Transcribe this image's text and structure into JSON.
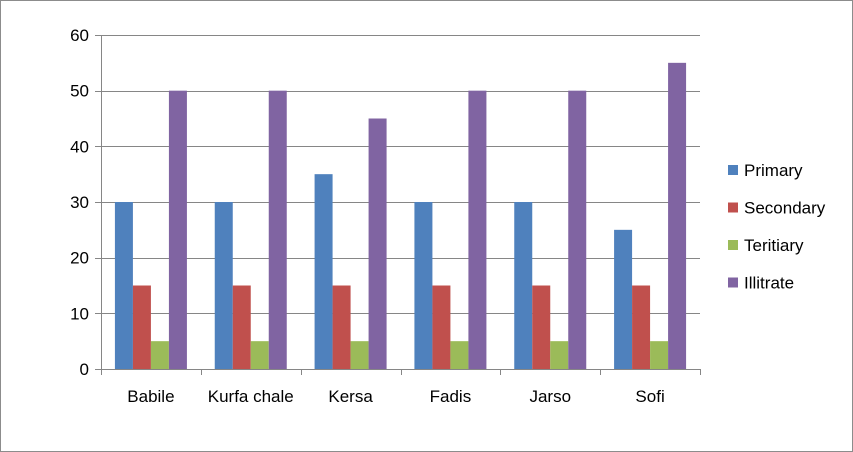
{
  "chart_data": {
    "type": "bar",
    "categories": [
      "Babile",
      "Kurfa chale",
      "Kersa",
      "Fadis",
      "Jarso",
      "Sofi"
    ],
    "series": [
      {
        "name": "Primary",
        "color": "#4F81BD",
        "values": [
          30,
          30,
          35,
          30,
          30,
          25
        ]
      },
      {
        "name": "Secondary",
        "color": "#C0504D",
        "values": [
          15,
          15,
          15,
          15,
          15,
          15
        ]
      },
      {
        "name": "Teritiary",
        "color": "#9BBB59",
        "values": [
          5,
          5,
          5,
          5,
          5,
          5
        ]
      },
      {
        "name": "Illitrate",
        "color": "#8064A2",
        "values": [
          50,
          50,
          45,
          50,
          50,
          55
        ]
      }
    ],
    "ylim": [
      0,
      60
    ],
    "yticks": [
      "0",
      "10",
      "20",
      "30",
      "40",
      "50",
      "60"
    ],
    "grid": true,
    "legend_position": "right",
    "title": "",
    "xlabel": "",
    "ylabel": ""
  }
}
